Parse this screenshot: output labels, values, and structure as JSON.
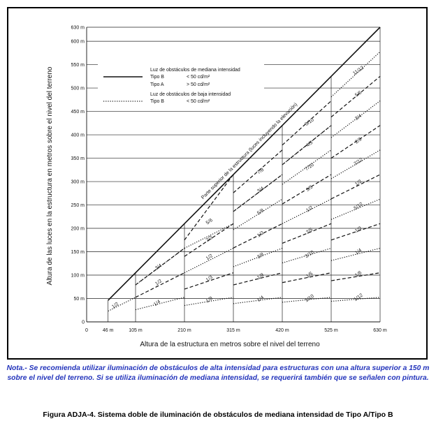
{
  "chart_data": {
    "type": "line",
    "xlabel": "Altura de la estructura en metros sobre el nivel del terreno",
    "ylabel": "Altura de las luces en la estructura en metros sobre el nivel del terreno",
    "x_ticks": [
      "0",
      "46 m",
      "105 m",
      "210 m",
      "315 m",
      "420 m",
      "525 m",
      "630 m"
    ],
    "x_tick_values": [
      0,
      46,
      105,
      210,
      315,
      420,
      525,
      630
    ],
    "y_ticks": [
      "0",
      "50 m",
      "100 m",
      "150 m",
      "200 m",
      "250 m",
      "300 m",
      "350 m",
      "400 m",
      "450 m",
      "500 m",
      "550 m",
      "600 m",
      "630 m"
    ],
    "y_tick_values": [
      0,
      50,
      100,
      150,
      200,
      250,
      300,
      350,
      400,
      450,
      500,
      550,
      600,
      630
    ],
    "xlim": [
      0,
      630
    ],
    "ylim": [
      0,
      630
    ],
    "diagonal_label": "Parte superior de la estructura (luces incluyendo la elevación)",
    "legend": {
      "medium_header": "Luz de obstáculos de mediana intensidad",
      "medium_rows": [
        {
          "type": "Tipo B",
          "value": "< 50 cd/m²",
          "style": "solid"
        },
        {
          "type": "Tipo A",
          "value": "> 50 cd/m²",
          "style": "none"
        }
      ],
      "low_header": "Luz de obstáculos de baja intensidad",
      "low_rows": [
        {
          "type": "Tipo B",
          "value": "< 50 cd/m²",
          "style": "dotted"
        }
      ]
    },
    "series": [
      {
        "style": "solid",
        "x": [
          46,
          630
        ],
        "y": [
          46,
          630
        ]
      },
      {
        "style": "dotted",
        "x": [
          46,
          105,
          105,
          210,
          210,
          315,
          315,
          420,
          420,
          525,
          525,
          630
        ],
        "y": [
          23,
          52.5,
          26,
          52.5,
          35,
          52.5,
          39,
          52.5,
          42,
          52.5,
          44,
          52.5
        ]
      },
      {
        "style": "dashed",
        "x": [
          105,
          210,
          210,
          315,
          315,
          420,
          420,
          525,
          525,
          630
        ],
        "y": [
          52.5,
          105,
          70,
          105,
          79,
          105,
          84,
          105,
          88,
          105
        ]
      },
      {
        "style": "dotted",
        "x": [
          46,
          105,
          105,
          210,
          210,
          315,
          315,
          420,
          420,
          525,
          525,
          630
        ],
        "y": [
          46,
          105,
          79,
          157.5,
          105,
          157.5,
          118,
          157.5,
          126,
          157.5,
          131,
          157.5
        ]
      },
      {
        "style": "dashed",
        "x": [
          105,
          210,
          210,
          315,
          315,
          420,
          420,
          525,
          525,
          630
        ],
        "y": [
          79,
          157.5,
          140,
          210,
          158,
          210,
          168,
          210,
          175,
          210
        ]
      },
      {
        "style": "dotted",
        "x": [
          210,
          315,
          315,
          420,
          420,
          525,
          525,
          630
        ],
        "y": [
          157.5,
          210,
          197,
          262.5,
          210,
          262.5,
          219,
          262.5
        ]
      },
      {
        "style": "dashed",
        "x": [
          210,
          315,
          315,
          420,
          420,
          525,
          525,
          630
        ],
        "y": [
          175,
          315,
          236,
          315,
          252,
          315,
          263,
          315
        ]
      },
      {
        "style": "dotted",
        "x": [
          315,
          420,
          420,
          525,
          525,
          630
        ],
        "y": [
          236,
          315,
          294,
          367.5,
          306,
          367.5
        ]
      },
      {
        "style": "dashed",
        "x": [
          315,
          420,
          420,
          525,
          525,
          630
        ],
        "y": [
          276,
          367.5,
          336,
          420,
          350,
          420
        ]
      },
      {
        "style": "dotted",
        "x": [
          420,
          525,
          525,
          630
        ],
        "y": [
          336,
          420,
          394,
          472.5
        ]
      },
      {
        "style": "dashed",
        "x": [
          420,
          525,
          525,
          630
        ],
        "y": [
          378,
          472.5,
          438,
          525
        ]
      },
      {
        "style": "dotted",
        "x": [
          525,
          630
        ],
        "y": [
          481,
          577.5
        ]
      }
    ],
    "fraction_labels": [
      {
        "text": "1/2",
        "x": 63,
        "y": 33
      },
      {
        "text": "1/4",
        "x": 153,
        "y": 38
      },
      {
        "text": "1/8",
        "x": 265,
        "y": 45
      },
      {
        "text": "1/4",
        "x": 375,
        "y": 47
      },
      {
        "text": "1/10",
        "x": 480,
        "y": 48
      },
      {
        "text": "1/12",
        "x": 585,
        "y": 50
      },
      {
        "text": "1/2",
        "x": 156,
        "y": 82
      },
      {
        "text": "1/3",
        "x": 265,
        "y": 90
      },
      {
        "text": "1/8",
        "x": 375,
        "y": 95
      },
      {
        "text": "1/5",
        "x": 480,
        "y": 98
      },
      {
        "text": "1/6",
        "x": 585,
        "y": 100
      },
      {
        "text": "3/4",
        "x": 156,
        "y": 115
      },
      {
        "text": "1/2",
        "x": 265,
        "y": 136
      },
      {
        "text": "3/8",
        "x": 375,
        "y": 139
      },
      {
        "text": "3/10",
        "x": 480,
        "y": 142
      },
      {
        "text": "1/4",
        "x": 585,
        "y": 148
      },
      {
        "text": "2/3",
        "x": 265,
        "y": 175
      },
      {
        "text": "1/2",
        "x": 375,
        "y": 185
      },
      {
        "text": "2/5",
        "x": 480,
        "y": 192
      },
      {
        "text": "1/3",
        "x": 585,
        "y": 195
      },
      {
        "text": "5/6",
        "x": 265,
        "y": 212
      },
      {
        "text": "5/8",
        "x": 375,
        "y": 233
      },
      {
        "text": "1/2",
        "x": 480,
        "y": 239
      },
      {
        "text": "5/12",
        "x": 585,
        "y": 245
      },
      {
        "text": "3/4",
        "x": 375,
        "y": 280
      },
      {
        "text": "3/5",
        "x": 480,
        "y": 283
      },
      {
        "text": "1/2",
        "x": 585,
        "y": 295
      },
      {
        "text": "7/8",
        "x": 375,
        "y": 320
      },
      {
        "text": "7/10",
        "x": 480,
        "y": 329
      },
      {
        "text": "7/12",
        "x": 585,
        "y": 340
      },
      {
        "text": "4/5",
        "x": 480,
        "y": 378
      },
      {
        "text": "2/3",
        "x": 585,
        "y": 385
      },
      {
        "text": "9/10",
        "x": 480,
        "y": 425
      },
      {
        "text": "3/4",
        "x": 585,
        "y": 435
      },
      {
        "text": "5/6",
        "x": 585,
        "y": 485
      },
      {
        "text": "11/12",
        "x": 585,
        "y": 535
      }
    ]
  },
  "note": "Nota.- Se recomienda utilizar iluminación de obstáculos de alta intensidad para estructuras con una altura superior a 150 m sobre el nivel del terreno. Si se utiliza iluminación de mediana intensidad, se requerirá también que se señalen con pintura.",
  "caption": "Figura ADJA-4. Sistema doble de iluminación de obstáculos de mediana intensidad de Tipo A/Tipo B",
  "colors": {
    "note": "#2233bb",
    "line": "#111111"
  }
}
